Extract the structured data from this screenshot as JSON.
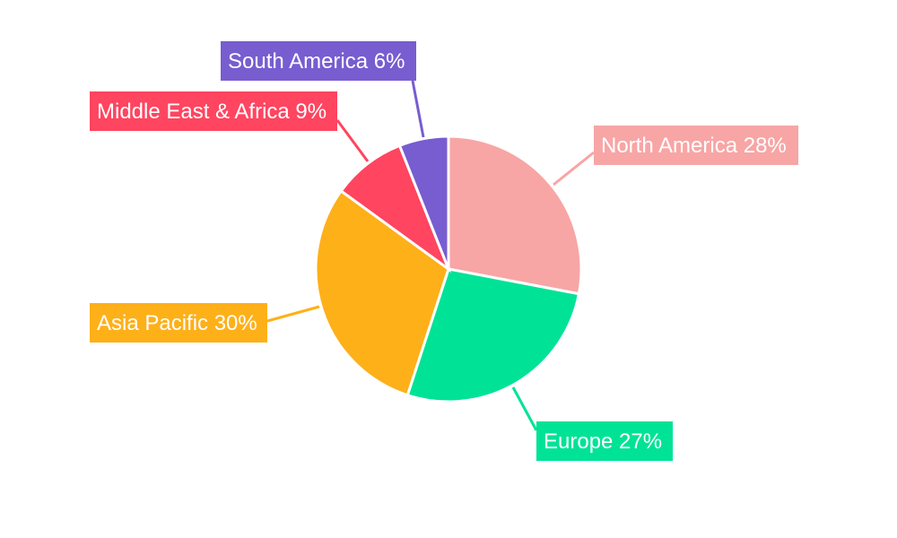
{
  "chart_data": {
    "type": "pie",
    "title": "",
    "start_angle_deg": 0,
    "direction": "clockwise",
    "slices": [
      {
        "label": "North America",
        "value": 28,
        "text": "North America 28%",
        "color": "#F8A5A5"
      },
      {
        "label": "Europe",
        "value": 27,
        "text": "Europe 27%",
        "color": "#00E396"
      },
      {
        "label": "Asia Pacific",
        "value": 30,
        "text": "Asia Pacific 30%",
        "color": "#FEB019"
      },
      {
        "label": "Middle East & Africa",
        "value": 9,
        "text": "Middle East & Africa 9%",
        "color": "#FF4560"
      },
      {
        "label": "South America",
        "value": 6,
        "text": "South America 6%",
        "color": "#775DD0"
      }
    ]
  }
}
